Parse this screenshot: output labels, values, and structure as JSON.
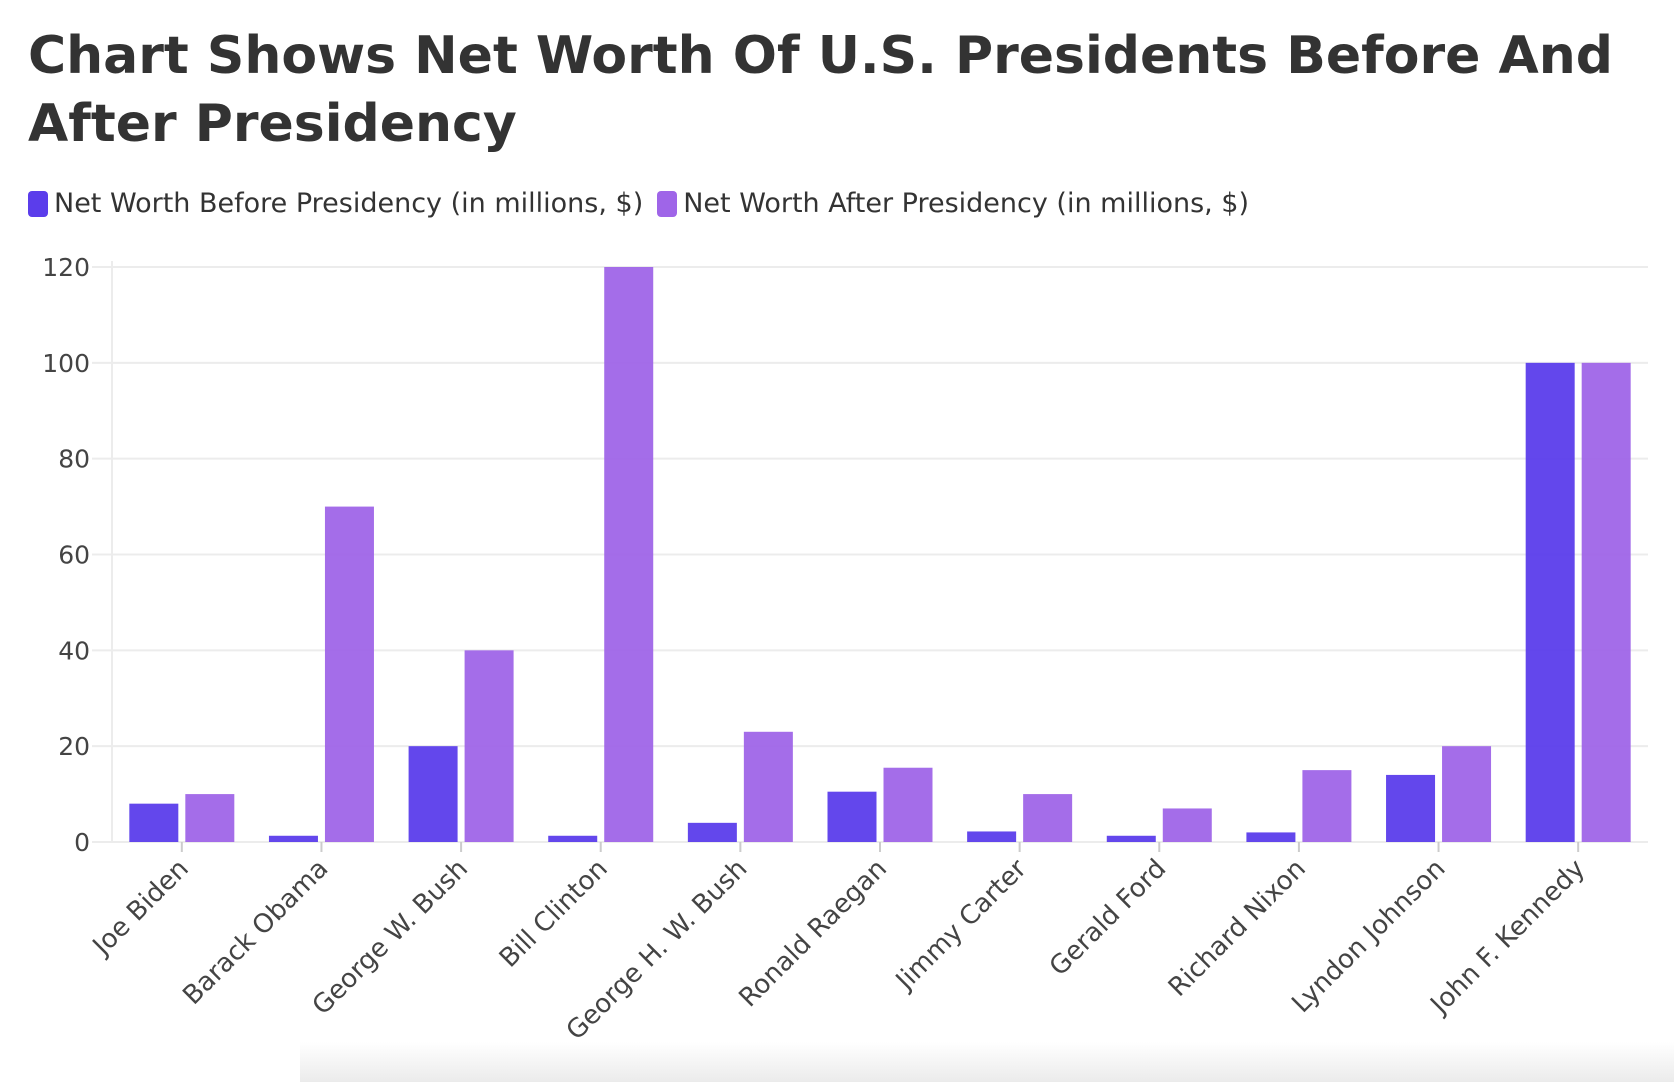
{
  "chart_data": {
    "type": "bar",
    "title": "Chart Shows Net Worth Of U.S. Presidents Before And After Presidency",
    "xlabel": "",
    "ylabel": "",
    "ylim": [
      0,
      120
    ],
    "yticks": [
      "0",
      "20",
      "40",
      "60",
      "80",
      "100",
      "120"
    ],
    "grid": true,
    "legend_position": "top-left",
    "categories": [
      "Joe Biden",
      "Barack Obama",
      "George W. Bush",
      "Bill Clinton",
      "George H. W. Bush",
      "Ronald Raegan",
      "Jimmy Carter",
      "Gerald Ford",
      "Richard Nixon",
      "Lyndon Johnson",
      "John F. Kennedy"
    ],
    "series": [
      {
        "name": "Net Worth Before Presidency (in millions, $)",
        "color": "#5b3deb",
        "values": [
          8,
          1.3,
          20,
          1.3,
          4,
          10.5,
          2.2,
          1.3,
          2,
          14,
          100
        ]
      },
      {
        "name": "Net Worth After Presidency (in millions, $)",
        "color": "#9f65e8",
        "values": [
          10,
          70,
          40,
          120,
          23,
          15.5,
          10,
          7,
          15,
          20,
          100
        ]
      }
    ]
  }
}
